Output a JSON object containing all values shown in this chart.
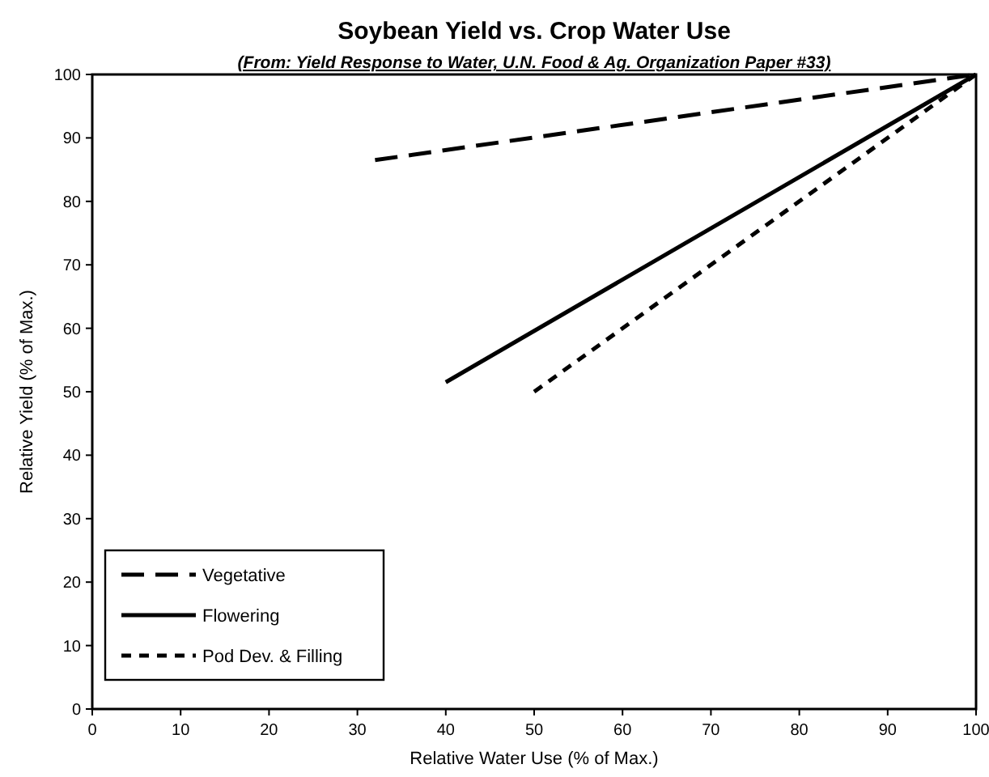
{
  "chart_data": {
    "type": "line",
    "title": "Soybean Yield vs. Crop Water Use",
    "subtitle": "(From:  Yield Response to Water, U.N. Food & Ag. Organization Paper #33)",
    "xlabel": "Relative Water Use (% of Max.)",
    "ylabel": "Relative Yield (% of Max.)",
    "xlim": [
      0,
      100
    ],
    "xticks": [
      0,
      10,
      20,
      30,
      40,
      50,
      60,
      70,
      80,
      90,
      100
    ],
    "ylim": [
      0,
      100
    ],
    "yticks": [
      0,
      10,
      20,
      30,
      40,
      50,
      60,
      70,
      80,
      90,
      100
    ],
    "grid": false,
    "legend": "bottom left",
    "marker": "none",
    "series": [
      {
        "name": "Vegetative",
        "color": "#000000",
        "line_style": "dashed",
        "x": [
          32,
          100
        ],
        "values": [
          86.5,
          100
        ]
      },
      {
        "name": "Flowering",
        "color": "#000000",
        "line_style": "solid",
        "x": [
          40,
          100
        ],
        "values": [
          51.5,
          100
        ]
      },
      {
        "name": "Pod Dev. & Filling",
        "color": "#000000",
        "line_style": "dotted",
        "x": [
          50,
          100
        ],
        "values": [
          50,
          100
        ]
      }
    ]
  }
}
